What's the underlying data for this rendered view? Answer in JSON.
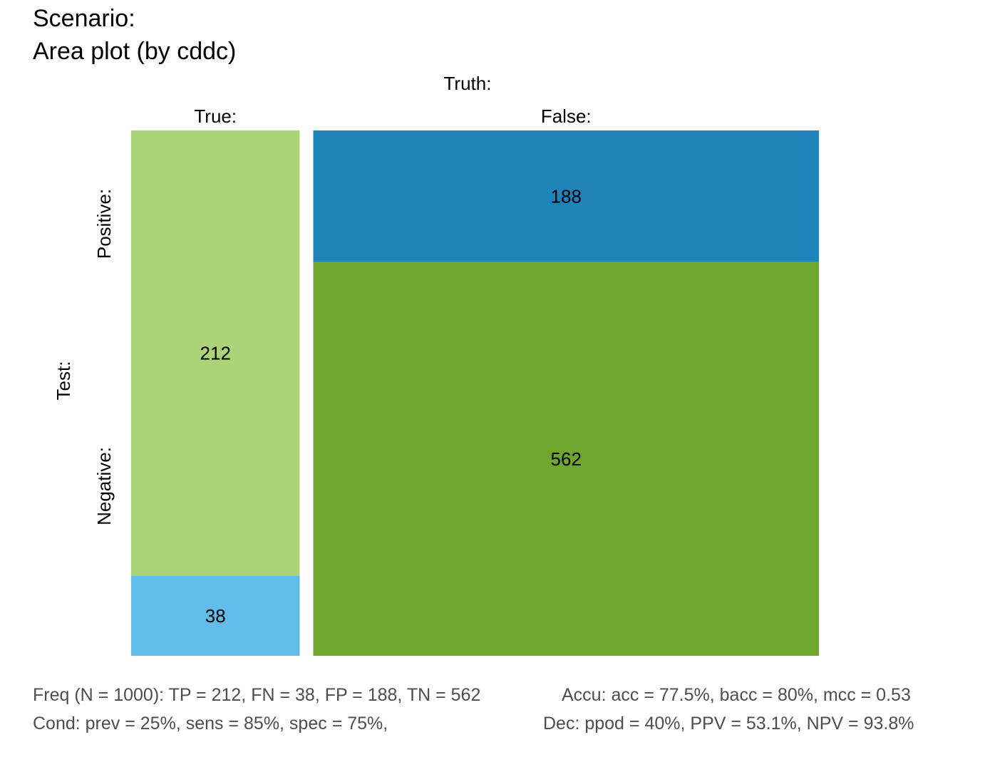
{
  "title": {
    "line1": "Scenario:",
    "line2": "Area plot (by cddc)"
  },
  "chart_data": {
    "type": "area",
    "N": 1000,
    "truth_label": "Truth:",
    "test_label": "Test:",
    "columns": [
      {
        "label": "True:",
        "cells": [
          {
            "key": "TP",
            "value": 212,
            "color": "#ABD378"
          },
          {
            "key": "FN",
            "value": 38,
            "color": "#61BDE7"
          }
        ]
      },
      {
        "label": "False:",
        "cells": [
          {
            "key": "FP",
            "value": 188,
            "color": "#1F84BA"
          },
          {
            "key": "TN",
            "value": 562,
            "color": "#6FA62E"
          }
        ]
      }
    ],
    "rows": [
      {
        "label": "Positive:"
      },
      {
        "label": "Negative:"
      }
    ]
  },
  "footer": {
    "freq": "Freq (N = 1000):  TP = 212, FN = 38, FP = 188, TN = 562",
    "accu": "Accu:  acc = 77.5%, bacc = 80%, mcc = 0.53",
    "cond": "Cond:  prev = 25%, sens = 85%, spec = 75%,",
    "dec": "Dec:  ppod = 40%, PPV = 53.1%, NPV = 93.8%"
  }
}
